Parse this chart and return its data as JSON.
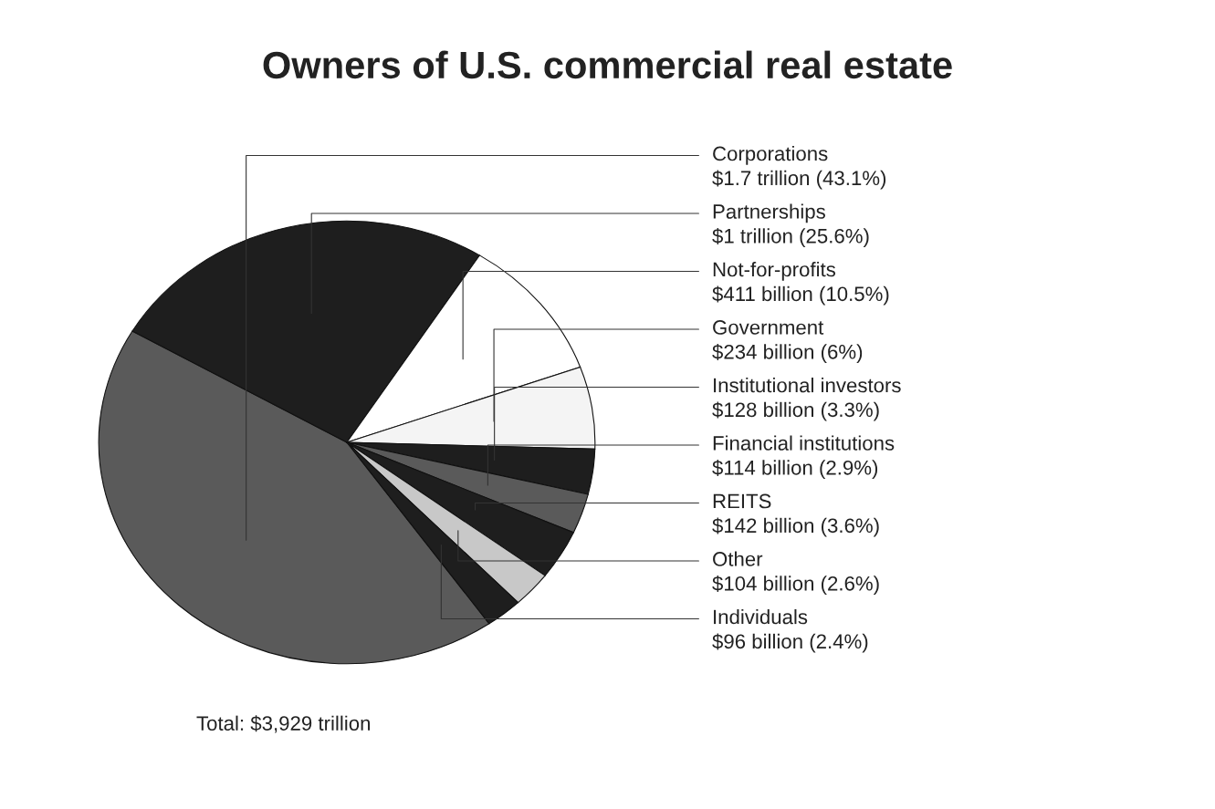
{
  "chart_data": {
    "type": "pie",
    "title": "Owners of U.S. commercial real estate",
    "categories": [
      "Corporations",
      "Partnerships",
      "Not-for-profits",
      "Government",
      "Institutional investors",
      "Financial institutions",
      "REITS",
      "Other",
      "Individuals"
    ],
    "values": [
      43.1,
      25.6,
      10.5,
      6,
      3.3,
      2.9,
      3.6,
      2.6,
      2.4
    ],
    "colors": [
      "#5a5a5a",
      "#1e1e1e",
      "#ffffff",
      "#f4f4f4",
      "#1e1e1e",
      "#5a5a5a",
      "#1e1e1e",
      "#c8c8c8",
      "#1e1e1e"
    ],
    "value_labels": [
      "$1.7 trillion (43.1%)",
      "$1 trillion (25.6%)",
      "$411 billion (10.5%)",
      "$234 billion (6%)",
      "$128 billion (3.3%)",
      "$114 billion (2.9%)",
      "$142 billion (3.6%)",
      "$104 billion (2.6%)",
      "$96 billion (2.4%)"
    ],
    "annotations": [
      "Total: $3,929 trillion"
    ]
  }
}
